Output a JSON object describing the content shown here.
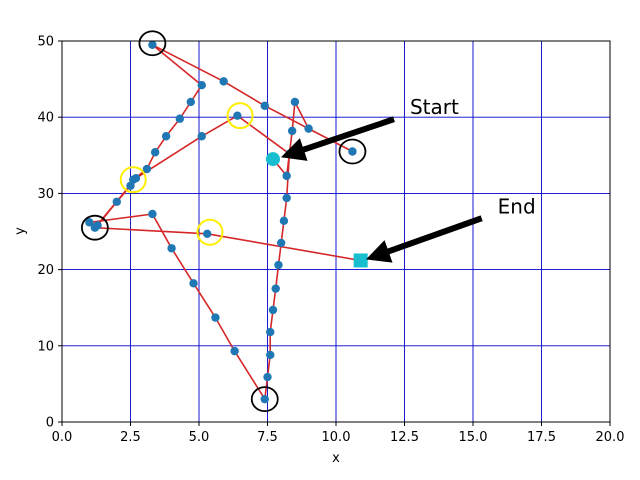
{
  "chart_data": {
    "type": "line",
    "title": "",
    "xlabel": "x",
    "ylabel": "y",
    "xlim": [
      0,
      20
    ],
    "ylim": [
      0,
      50
    ],
    "xticks": [
      0.0,
      2.5,
      5.0,
      7.5,
      10.0,
      12.5,
      15.0,
      17.5,
      20.0
    ],
    "yticks": [
      0,
      10,
      20,
      30,
      40,
      50
    ],
    "xtick_labels": [
      "0.0",
      "2.5",
      "5.0",
      "7.5",
      "10.0",
      "12.5",
      "15.0",
      "17.5",
      "20.0"
    ],
    "ytick_labels": [
      "0",
      "10",
      "20",
      "30",
      "40",
      "50"
    ],
    "grid": true,
    "colors": {
      "line": "#d62728",
      "marker": "#1f77b4",
      "grid": "#0000cc",
      "start": "#17becf",
      "end": "#17becf"
    },
    "series": [
      {
        "x": [
          7.7,
          8.2,
          8.4,
          8.5,
          9.0,
          10.6,
          7.4,
          5.9,
          3.3,
          5.1,
          4.7,
          4.3,
          3.8,
          3.4,
          3.1,
          2.6,
          2.5,
          2.0,
          1.3,
          1.0,
          3.3,
          4.0,
          4.8,
          5.6,
          6.3,
          7.4,
          7.5,
          7.6,
          7.6,
          7.7,
          7.8,
          7.9,
          8.0,
          8.1,
          8.2,
          8.3,
          6.4,
          5.1,
          2.7,
          1.2,
          5.3,
          10.9
        ],
        "y": [
          34.5,
          32.3,
          38.2,
          42.0,
          38.5,
          35.5,
          41.5,
          44.7,
          49.5,
          44.2,
          42.0,
          39.8,
          37.5,
          35.4,
          33.2,
          31.8,
          31.0,
          28.9,
          25.8,
          26.2,
          27.3,
          22.8,
          18.2,
          13.7,
          9.3,
          3.0,
          5.9,
          8.8,
          11.8,
          14.7,
          17.5,
          20.6,
          23.5,
          26.4,
          29.4,
          35.2,
          40.2,
          37.5,
          32.0,
          25.5,
          24.7,
          21.2
        ]
      }
    ],
    "start_point": {
      "x": 7.7,
      "y": 34.5
    },
    "end_point": {
      "x": 10.9,
      "y": 21.2
    },
    "yellow_circles": [
      {
        "x": 6.5,
        "y": 40.2
      },
      {
        "x": 2.6,
        "y": 31.8
      },
      {
        "x": 5.4,
        "y": 24.9
      }
    ],
    "black_circles": [
      {
        "x": 3.3,
        "y": 49.7
      },
      {
        "x": 10.6,
        "y": 35.5
      },
      {
        "x": 1.2,
        "y": 25.5
      },
      {
        "x": 7.4,
        "y": 3.0
      }
    ],
    "annotations": [
      {
        "text": "Start",
        "text_x": 12.7,
        "text_y": 40.0,
        "target_x": 8.2,
        "target_y": 35.0
      },
      {
        "text": "End",
        "text_x": 15.9,
        "text_y": 27.0,
        "target_x": 11.3,
        "target_y": 21.6
      }
    ]
  }
}
